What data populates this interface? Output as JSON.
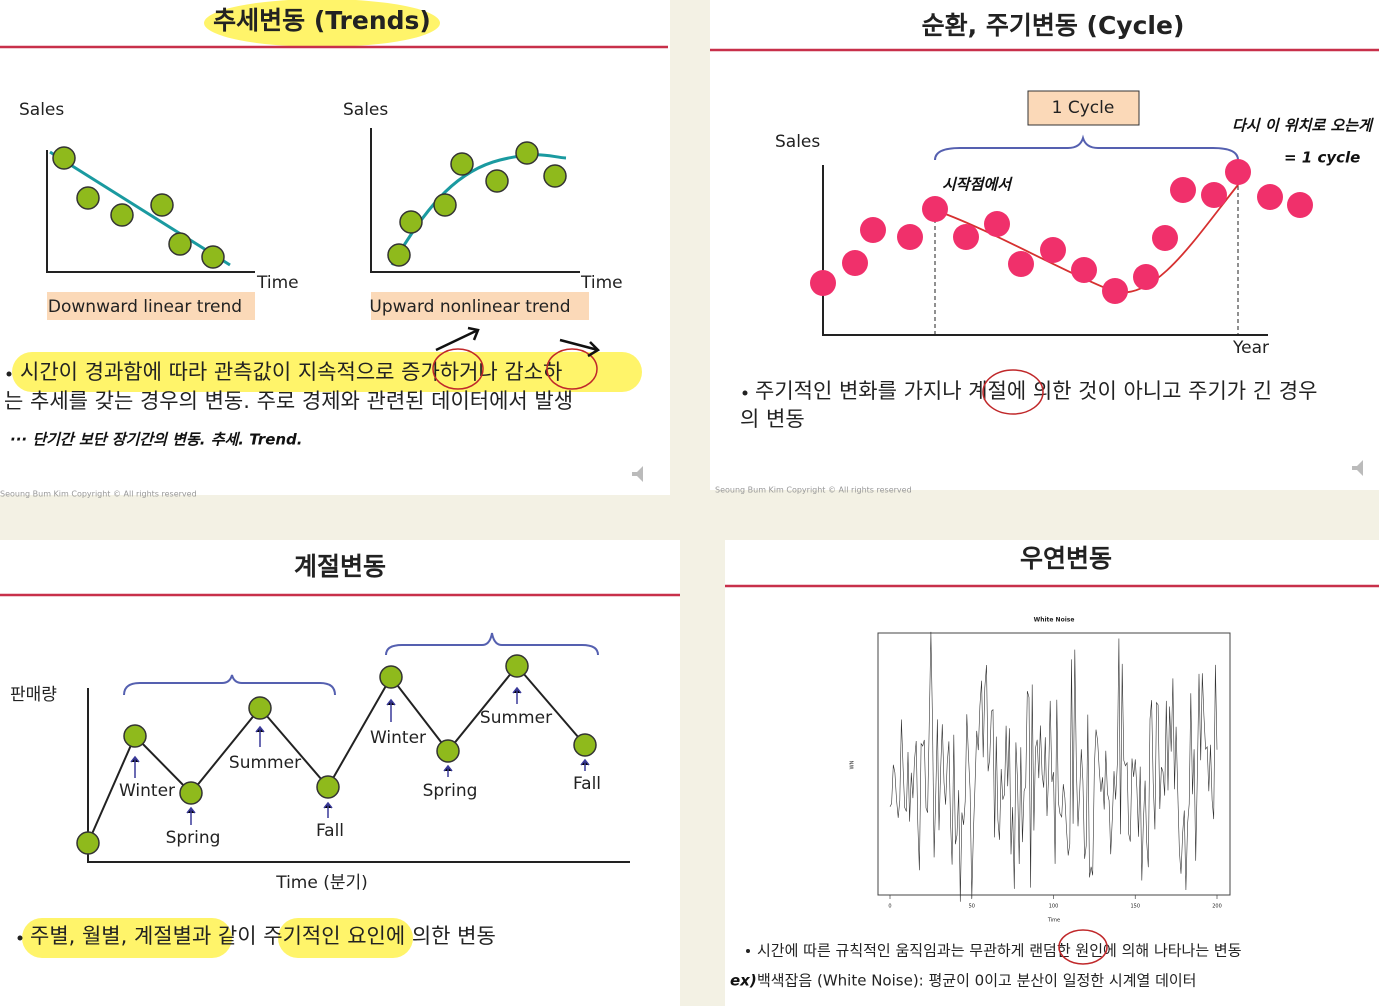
{
  "slides": [
    {
      "title": "추세변동 (Trends)",
      "charts": [
        {
          "y_label": "Sales",
          "x_label": "Time",
          "caption": "Downward linear trend"
        },
        {
          "y_label": "Sales",
          "x_label": "Time",
          "caption": "Upward nonlinear trend"
        }
      ],
      "bullet_line1": "시간이 경과함에 따라 관측값이 지속적으로 증가하거나 감소하",
      "bullet_line2": "는 추세를 갖는 경우의 변동. 주로 경제와 관련된 데이터에서 발생",
      "note": "··· 단기간 보단 장기간의 변동. 추세. Trend.",
      "footer": "Seoung Bum Kim   Copyright © All rights reserved"
    },
    {
      "title": "순환, 주기변동 (Cycle)",
      "y_label": "Sales",
      "x_label": "Year",
      "cycle_label": "1 Cycle",
      "note_start": "시작점에서",
      "note_cycle_1": "다시 이 위치로 오는게",
      "note_cycle_2": "= 1 cycle",
      "bullet_line1": "주기적인 변화를 가지나 계절에 의한 것이 아니고 주기가 긴 경우",
      "bullet_line2": "의 변동",
      "footer": "Seoung Bum Kim   Copyright © All rights reserved"
    },
    {
      "title": "계절변동",
      "y_label": "판매량",
      "x_label": "Time (분기)",
      "season_labels": [
        "Winter",
        "Spring",
        "Summer",
        "Fall",
        "Winter",
        "Spring",
        "Summer",
        "Fall"
      ],
      "bullet": "주별, 월별, 계절별과 같이 주기적인 요인에 의한 변동"
    },
    {
      "title": "우연변동",
      "chart": {
        "title": "White Noise",
        "x_label": "Time",
        "y_label": "WN",
        "xticks": [
          0,
          50,
          100,
          150,
          200
        ]
      },
      "bullet_line1": "시간에 따른 규칙적인 움직임과는 무관하게 랜덤한 원인에 의해 나타나는 변동",
      "note": "ex)",
      "bullet_line2": "백색잡음 (White Noise): 평균이 0이고 분산이 일정한 시계열 데이터"
    }
  ]
}
